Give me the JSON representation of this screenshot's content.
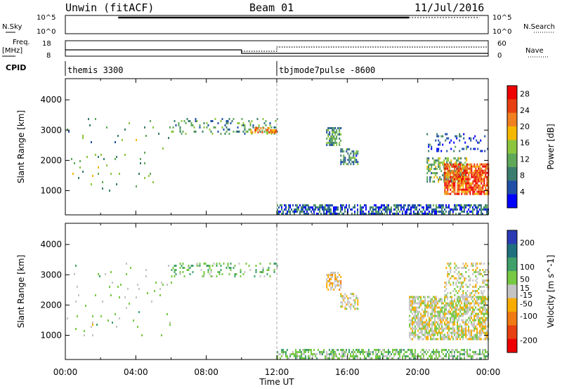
{
  "header": {
    "station": "Unwin (fitACF)",
    "beam": "Beam 01",
    "date": "11/Jul/2016"
  },
  "noise_panel": {
    "left_label": "N.Sky",
    "right_label": "N.Search",
    "ticks": [
      "10^5",
      "10^0"
    ]
  },
  "freq_panel": {
    "left_label_1": "Freq.",
    "left_label_2": "[MHz]",
    "left_ticks": [
      "18",
      "8"
    ],
    "right_label": "Nave",
    "right_ticks": [
      "60",
      "0"
    ]
  },
  "cpid_panel": {
    "label": "CPID",
    "programs": [
      {
        "name": "themis 3300",
        "start": "00:00"
      },
      {
        "name": "tbjmode7pulse -8600",
        "start": "12:00"
      }
    ]
  },
  "colors": {
    "power": [
      "#0000ff",
      "#1f4fa6",
      "#3b7d6e",
      "#5fa85a",
      "#8cc63f",
      "#f5b800",
      "#f08020",
      "#e84010",
      "#ee0000"
    ],
    "velocity": [
      "#2b3bb5",
      "#1f6f7e",
      "#3fa06a",
      "#77c943",
      "#c4c4c4",
      "#f8ac00",
      "#f07a14",
      "#e84010",
      "#ee0000"
    ]
  },
  "chart_data": [
    {
      "type": "heatmap",
      "panel": "power",
      "ylabel": "Slant Range [km]",
      "yticks": [
        1000,
        2000,
        3000,
        4000
      ],
      "ylim": [
        200,
        4700
      ],
      "xlim": [
        "00:00",
        "24:00"
      ],
      "colorbar_label": "Power [dB]",
      "colorbar_ticks": [
        4,
        8,
        12,
        16,
        20,
        24,
        28
      ],
      "colorbar_range": [
        0,
        30
      ],
      "regions": [
        {
          "t": [
            6.0,
            12.0
          ],
          "r": [
            2900,
            3400
          ],
          "level": 10,
          "density": 0.22
        },
        {
          "t": [
            10.5,
            12.0
          ],
          "r": [
            2950,
            3100
          ],
          "level": 22,
          "density": 0.5
        },
        {
          "t": [
            0.0,
            6.0
          ],
          "r": [
            1000,
            3400
          ],
          "level": 12,
          "density": 0.02
        },
        {
          "t": [
            12.0,
            24.0
          ],
          "r": [
            250,
            550
          ],
          "level": 6,
          "density": 0.6
        },
        {
          "t": [
            14.8,
            15.6
          ],
          "r": [
            2500,
            3100
          ],
          "level": 10,
          "density": 0.7
        },
        {
          "t": [
            15.6,
            16.6
          ],
          "r": [
            1900,
            2400
          ],
          "level": 9,
          "density": 0.55
        },
        {
          "t": [
            20.5,
            22.8
          ],
          "r": [
            1300,
            2100
          ],
          "level": 12,
          "density": 0.5
        },
        {
          "t": [
            21.5,
            24.0
          ],
          "r": [
            900,
            1900
          ],
          "level": 24,
          "density": 0.8
        },
        {
          "t": [
            20.5,
            24.0
          ],
          "r": [
            2300,
            2900
          ],
          "level": 6,
          "density": 0.15
        }
      ]
    },
    {
      "type": "heatmap",
      "panel": "velocity",
      "ylabel": "Slant Range [km]",
      "yticks": [
        1000,
        2000,
        3000,
        4000
      ],
      "ylim": [
        200,
        4700
      ],
      "xlim": [
        "00:00",
        "24:00"
      ],
      "xticks": [
        "00:00",
        "04:00",
        "08:00",
        "12:00",
        "16:00",
        "20:00",
        "00:00"
      ],
      "xlabel": "Time UT",
      "colorbar_label": "Velocity [m s^-1]",
      "colorbar_ticks": [
        200,
        100,
        50,
        15,
        -15,
        -50,
        -100,
        -200
      ],
      "colorbar_range": [
        -250,
        250
      ],
      "regions": [
        {
          "t": [
            6.0,
            12.0
          ],
          "r": [
            2950,
            3400
          ],
          "level": 60,
          "density": 0.22
        },
        {
          "t": [
            0.0,
            6.0
          ],
          "r": [
            1000,
            3400
          ],
          "level": 30,
          "density": 0.02
        },
        {
          "t": [
            12.0,
            24.0
          ],
          "r": [
            250,
            550
          ],
          "level": 55,
          "density": 0.55
        },
        {
          "t": [
            14.8,
            15.6
          ],
          "r": [
            2500,
            3100
          ],
          "level": -40,
          "density": 0.6
        },
        {
          "t": [
            15.6,
            16.6
          ],
          "r": [
            1900,
            2400
          ],
          "level": 0,
          "density": 0.5
        },
        {
          "t": [
            19.5,
            24.0
          ],
          "r": [
            900,
            2300
          ],
          "level": 0,
          "density": 0.7
        },
        {
          "t": [
            21.5,
            24.0
          ],
          "r": [
            2300,
            3400
          ],
          "level": 0,
          "density": 0.3
        }
      ]
    }
  ]
}
